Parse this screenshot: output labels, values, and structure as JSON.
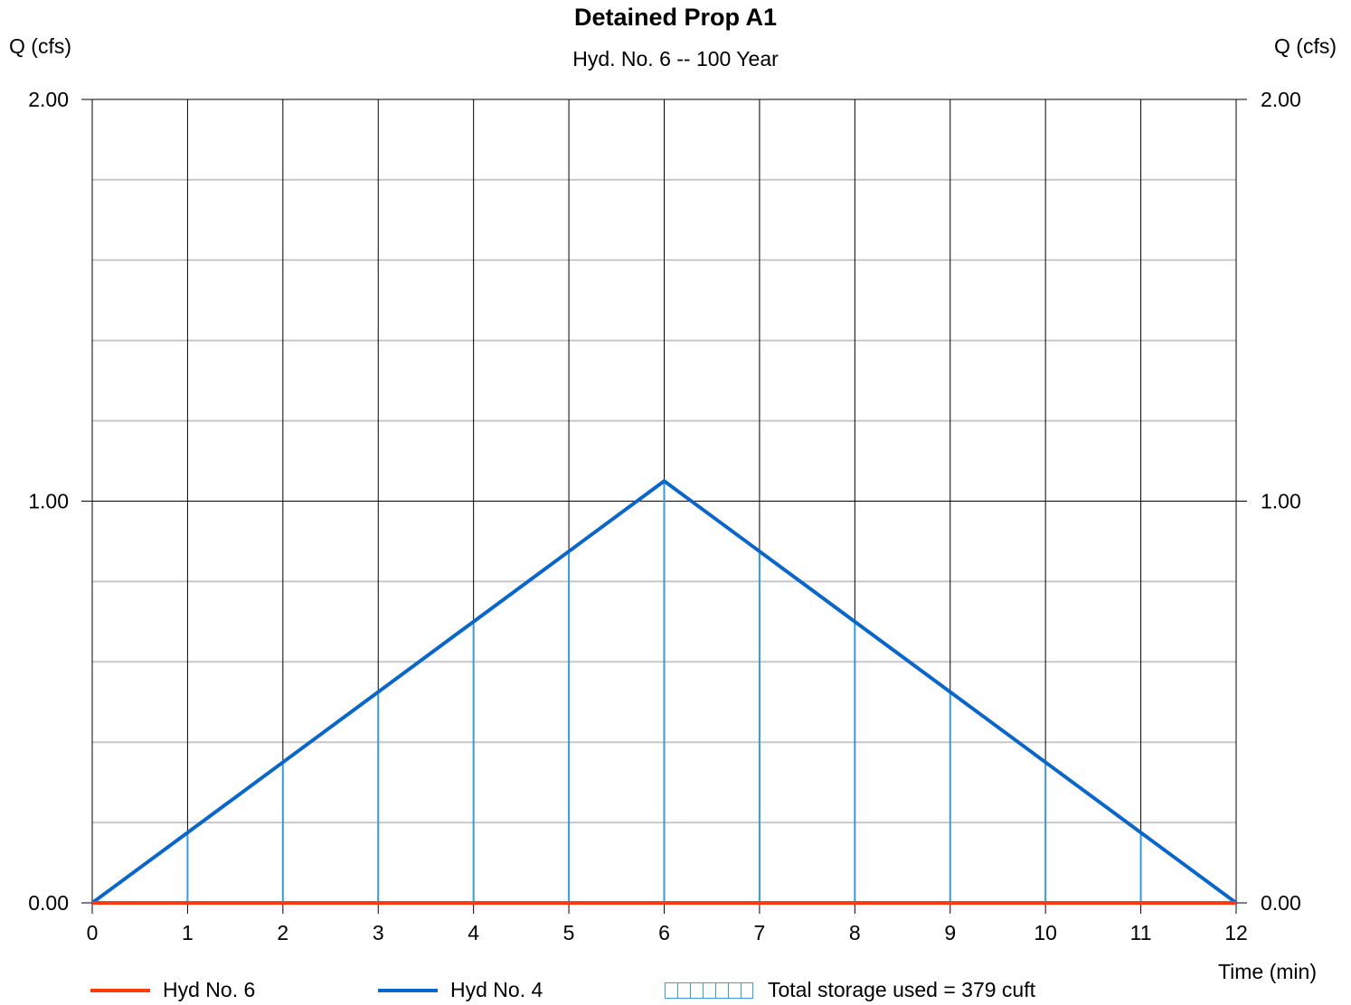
{
  "chart_data": {
    "type": "line",
    "title": "Detained Prop A1",
    "subtitle": "Hyd. No. 6 -- 100 Year",
    "ylabel_left": "Q (cfs)",
    "ylabel_right": "Q (cfs)",
    "xlabel": "Time (min)",
    "xlim": [
      0,
      12
    ],
    "ylim": [
      0,
      2
    ],
    "x_ticks": [
      "0",
      "1",
      "2",
      "3",
      "4",
      "5",
      "6",
      "7",
      "8",
      "9",
      "10",
      "11",
      "12"
    ],
    "y_ticks": [
      "0.00",
      "1.00",
      "2.00"
    ],
    "y_minor_step": 0.2,
    "grid": true,
    "series": [
      {
        "name": "Hyd No. 6",
        "color": "#ff3b0a",
        "x": [
          0,
          1,
          2,
          3,
          4,
          5,
          6,
          7,
          8,
          9,
          10,
          11,
          12
        ],
        "values": [
          0,
          0,
          0,
          0,
          0,
          0,
          0,
          0,
          0,
          0,
          0,
          0,
          0
        ]
      },
      {
        "name": "Hyd No. 4",
        "color": "#0a66c8",
        "x": [
          0,
          1,
          2,
          3,
          4,
          5,
          6,
          7,
          8,
          9,
          10,
          11,
          12
        ],
        "values": [
          0,
          0.175,
          0.35,
          0.525,
          0.7,
          0.875,
          1.05,
          0.875,
          0.7,
          0.525,
          0.35,
          0.175,
          0
        ]
      }
    ],
    "storage": {
      "label": "Total storage used = 379 cuft",
      "color": "#3a9ad9"
    },
    "legend_position": "bottom"
  }
}
